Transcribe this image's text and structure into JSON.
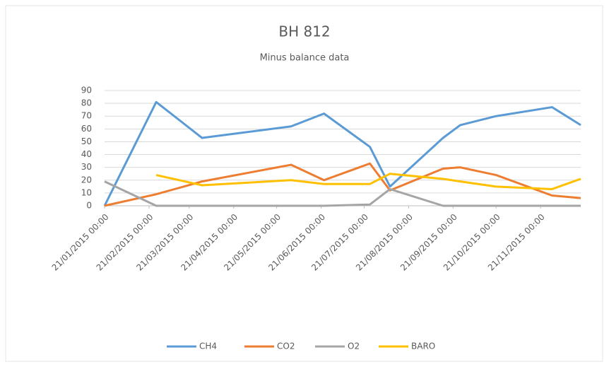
{
  "chart_data": {
    "type": "line",
    "title": "BH 812",
    "subtitle": "Minus balance data",
    "x": [
      "21/01/2015 00:00",
      "26/02/2015 00:00",
      "30/03/2015 00:00",
      "31/05/2015 00:00",
      "23/06/2015 00:00",
      "25/07/2015 00:00",
      "08/08/2015 00:00",
      "14/09/2015 00:00",
      "26/09/2015 00:00",
      "21/10/2015 00:00",
      "29/11/2015 00:00",
      "19/12/2015 00:00"
    ],
    "series": [
      {
        "name": "CH4",
        "color": "#5b9bd5",
        "values": [
          0,
          81,
          53,
          62,
          72,
          46,
          15,
          53,
          63,
          70,
          77,
          63
        ]
      },
      {
        "name": "CO2",
        "color": "#ed7d31",
        "values": [
          0,
          9,
          19,
          32,
          20,
          33,
          12,
          29,
          30,
          24,
          8,
          6
        ]
      },
      {
        "name": "O2",
        "color": "#a5a5a5",
        "values": [
          19,
          0,
          0,
          0,
          0,
          1,
          13,
          0,
          0,
          0,
          0,
          0
        ]
      },
      {
        "name": "BARO",
        "color": "#ffc000",
        "values": [
          null,
          24,
          16,
          20,
          17,
          17,
          25,
          21,
          19,
          15,
          13,
          21
        ]
      }
    ],
    "xlim": [
      "21/01/2015 00:00",
      "19/12/2015 00:00"
    ],
    "xticks": [
      "21/01/2015 00:00",
      "21/02/2015 00:00",
      "21/03/2015 00:00",
      "21/04/2015 00:00",
      "21/05/2015 00:00",
      "21/06/2015 00:00",
      "21/07/2015 00:00",
      "21/08/2015 00:00",
      "21/09/2015 00:00",
      "21/10/2015 00:00",
      "21/11/2015 00:00"
    ],
    "ylim": [
      0,
      90
    ],
    "yticks": [
      0,
      10,
      20,
      30,
      40,
      50,
      60,
      70,
      80,
      90
    ],
    "grid": true,
    "legend": "bottom"
  }
}
